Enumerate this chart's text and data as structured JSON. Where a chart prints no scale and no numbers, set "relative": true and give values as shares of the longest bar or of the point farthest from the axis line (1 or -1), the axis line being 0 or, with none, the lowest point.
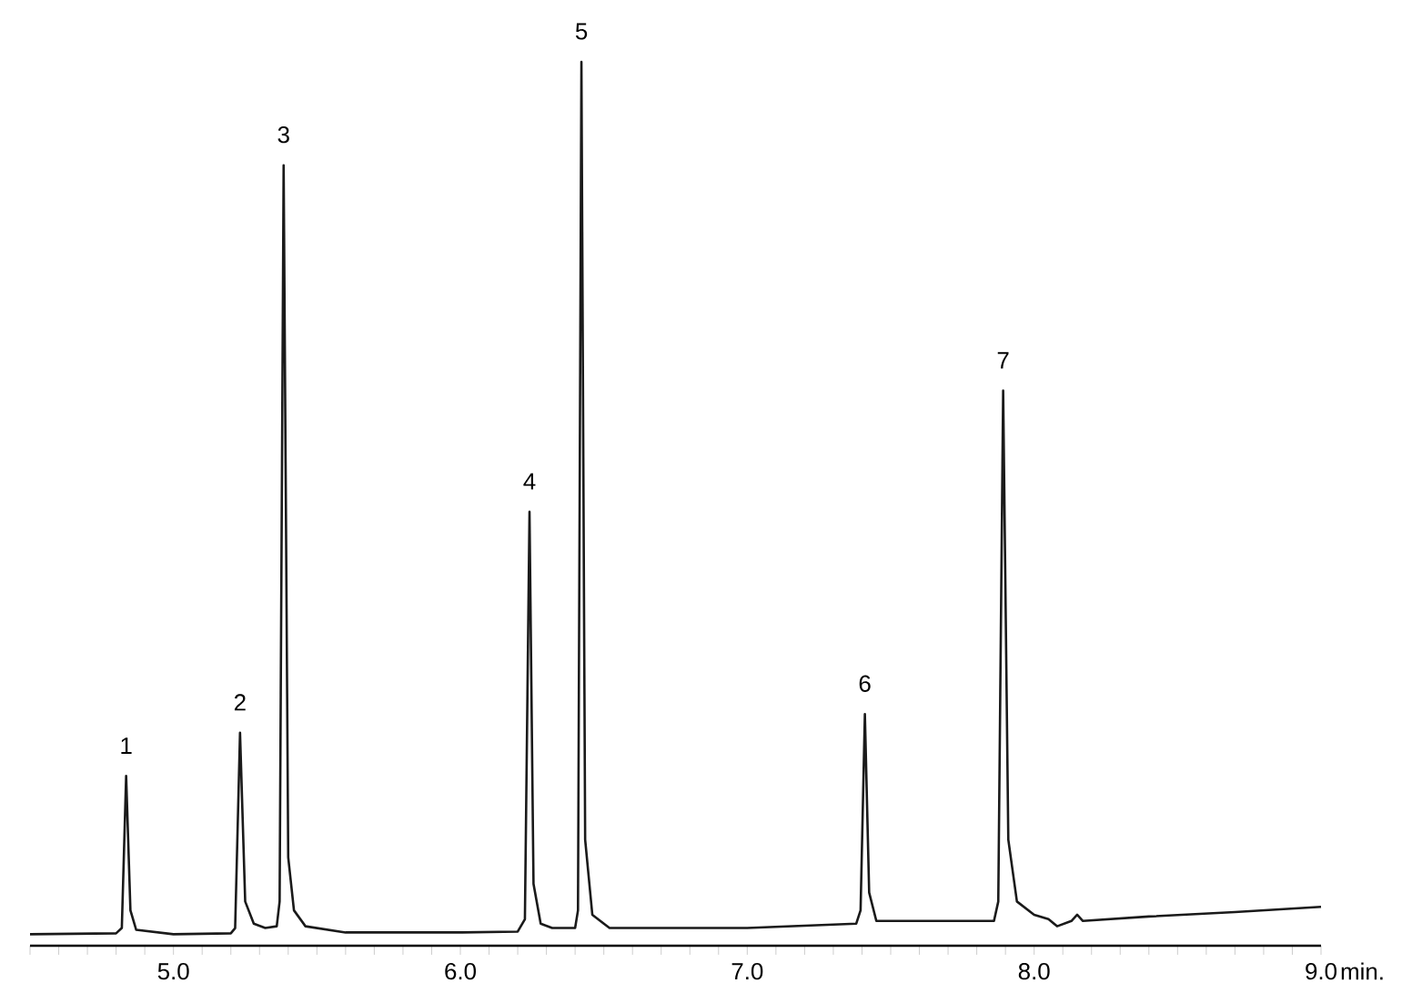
{
  "chart_data": {
    "type": "line",
    "relative": true,
    "xlabel": "min.",
    "xlim": [
      4.5,
      9.0
    ],
    "xticks": [
      {
        "value": 4.5,
        "label": null
      },
      {
        "value": 4.6,
        "label": null
      },
      {
        "value": 4.7,
        "label": null
      },
      {
        "value": 4.8,
        "label": null
      },
      {
        "value": 4.9,
        "label": null
      },
      {
        "value": 5.0,
        "label": "5.0"
      },
      {
        "value": 5.1,
        "label": null
      },
      {
        "value": 5.2,
        "label": null
      },
      {
        "value": 5.3,
        "label": null
      },
      {
        "value": 5.4,
        "label": null
      },
      {
        "value": 5.5,
        "label": null
      },
      {
        "value": 5.6,
        "label": null
      },
      {
        "value": 5.7,
        "label": null
      },
      {
        "value": 5.8,
        "label": null
      },
      {
        "value": 5.9,
        "label": null
      },
      {
        "value": 6.0,
        "label": "6.0"
      },
      {
        "value": 6.1,
        "label": null
      },
      {
        "value": 6.2,
        "label": null
      },
      {
        "value": 6.3,
        "label": null
      },
      {
        "value": 6.4,
        "label": null
      },
      {
        "value": 6.5,
        "label": null
      },
      {
        "value": 6.6,
        "label": null
      },
      {
        "value": 6.7,
        "label": null
      },
      {
        "value": 6.8,
        "label": null
      },
      {
        "value": 6.9,
        "label": null
      },
      {
        "value": 7.0,
        "label": "7.0"
      },
      {
        "value": 7.1,
        "label": null
      },
      {
        "value": 7.2,
        "label": null
      },
      {
        "value": 7.3,
        "label": null
      },
      {
        "value": 7.4,
        "label": null
      },
      {
        "value": 7.5,
        "label": null
      },
      {
        "value": 7.6,
        "label": null
      },
      {
        "value": 7.7,
        "label": null
      },
      {
        "value": 7.8,
        "label": null
      },
      {
        "value": 7.9,
        "label": null
      },
      {
        "value": 8.0,
        "label": "8.0"
      },
      {
        "value": 8.1,
        "label": null
      },
      {
        "value": 8.2,
        "label": null
      },
      {
        "value": 8.3,
        "label": null
      },
      {
        "value": 8.4,
        "label": null
      },
      {
        "value": 8.5,
        "label": null
      },
      {
        "value": 8.6,
        "label": null
      },
      {
        "value": 8.7,
        "label": null
      },
      {
        "value": 8.8,
        "label": null
      },
      {
        "value": 8.9,
        "label": null
      },
      {
        "value": 9.0,
        "label": "9.0"
      }
    ],
    "tick_labels": "x",
    "grid": false,
    "marker": "none",
    "line_style": "solid",
    "series": [
      {
        "color": "#1a1a1a",
        "x": [
          4.5,
          4.8,
          4.82,
          4.835,
          4.85,
          4.87,
          5.0,
          5.2,
          5.215,
          5.232,
          5.25,
          5.28,
          5.32,
          5.36,
          5.37,
          5.384,
          5.4,
          5.42,
          5.46,
          5.6,
          6.0,
          6.2,
          6.225,
          6.241,
          6.255,
          6.28,
          6.32,
          6.4,
          6.41,
          6.422,
          6.435,
          6.46,
          6.52,
          7.0,
          7.38,
          7.395,
          7.41,
          7.425,
          7.45,
          7.86,
          7.875,
          7.892,
          7.91,
          7.94,
          8.0,
          8.05,
          8.08,
          8.13,
          8.15,
          8.17,
          8.4,
          8.7,
          9.0
        ],
        "values": [
          0.013,
          0.014,
          0.02,
          0.192,
          0.04,
          0.018,
          0.013,
          0.014,
          0.02,
          0.241,
          0.05,
          0.025,
          0.02,
          0.022,
          0.05,
          0.883,
          0.1,
          0.04,
          0.022,
          0.015,
          0.015,
          0.016,
          0.03,
          0.491,
          0.07,
          0.025,
          0.02,
          0.02,
          0.04,
          1.0,
          0.12,
          0.035,
          0.02,
          0.02,
          0.025,
          0.04,
          0.262,
          0.06,
          0.028,
          0.028,
          0.05,
          0.628,
          0.12,
          0.05,
          0.035,
          0.03,
          0.022,
          0.028,
          0.035,
          0.028,
          0.033,
          0.038,
          0.044
        ]
      }
    ],
    "annotations": [
      {
        "text": "1",
        "x": 4.835,
        "y": 0.192
      },
      {
        "text": "2",
        "x": 5.232,
        "y": 0.241
      },
      {
        "text": "3",
        "x": 5.384,
        "y": 0.883
      },
      {
        "text": "4",
        "x": 6.241,
        "y": 0.491
      },
      {
        "text": "5",
        "x": 6.422,
        "y": 1.0
      },
      {
        "text": "6",
        "x": 7.41,
        "y": 0.262
      },
      {
        "text": "7",
        "x": 7.892,
        "y": 0.628
      }
    ]
  }
}
